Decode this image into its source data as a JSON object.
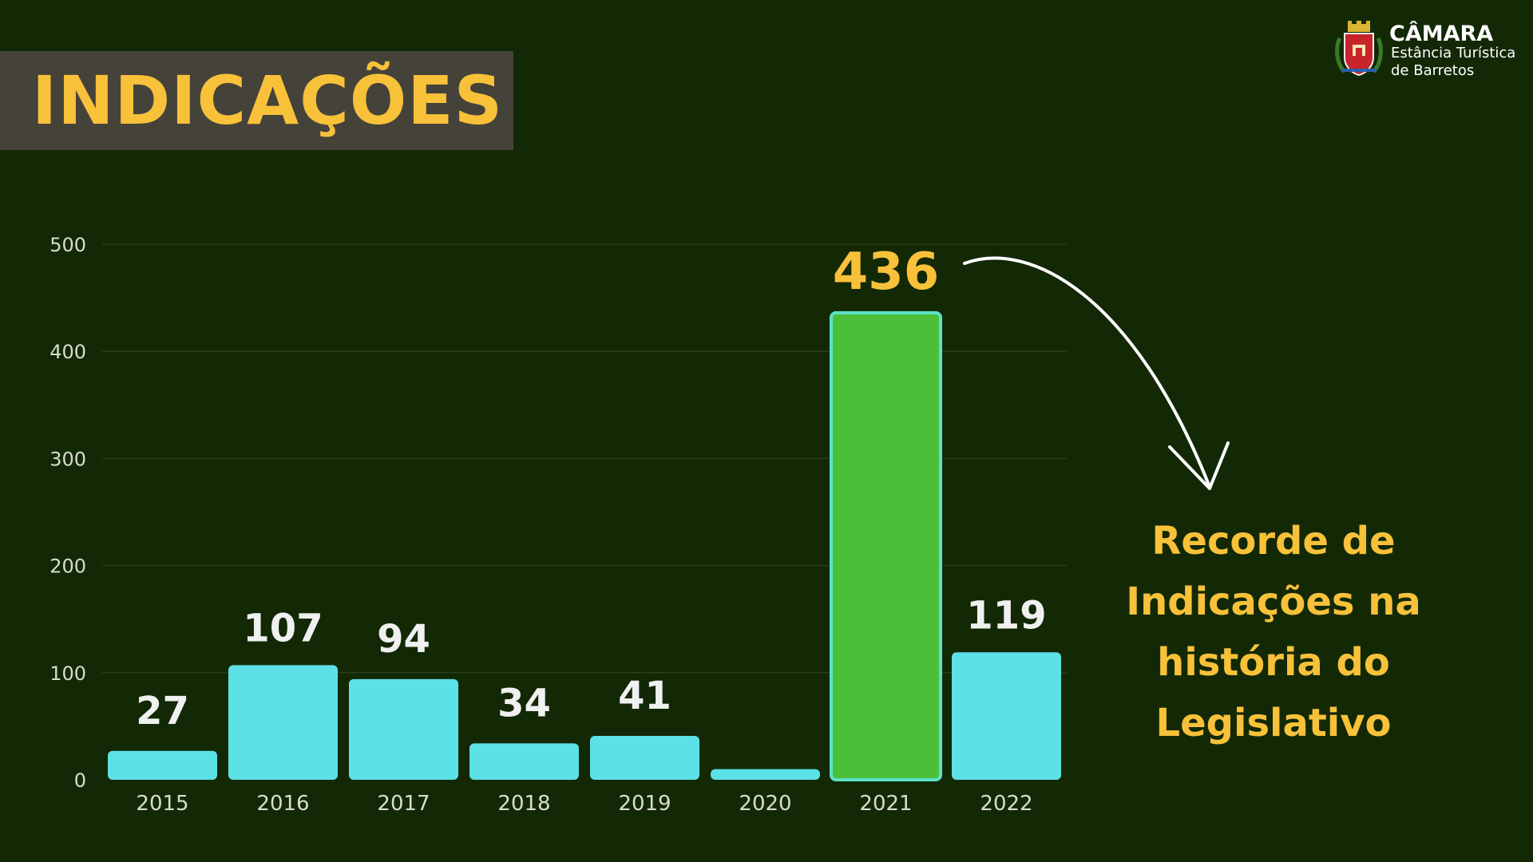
{
  "header": {
    "title": "INDICAÇÕES"
  },
  "logo": {
    "title": "CÂMARA",
    "subtitle_line1": "Estância Turística",
    "subtitle_line2": "de Barretos",
    "icon": "municipal-crest-icon"
  },
  "callout": {
    "lines": [
      "Recorde de",
      "Indicações na",
      "história do",
      "Legislativo"
    ],
    "arrow_icon": "curved-arrow-icon"
  },
  "colors": {
    "background": "#132906",
    "title_box": "#45423a",
    "accent_yellow": "#f8c13a",
    "bar_default": "#5ce1e6",
    "bar_highlight": "#4cbf3a",
    "bar_highlight_border": "#5ce1c8",
    "label_default": "#f0f0f0",
    "label_highlight": "#f8c13a"
  },
  "chart_data": {
    "type": "bar",
    "categories": [
      "2015",
      "2016",
      "2017",
      "2018",
      "2019",
      "2020",
      "2021",
      "2022"
    ],
    "values": [
      27,
      107,
      94,
      34,
      41,
      10,
      436,
      119
    ],
    "data_labels": [
      "27",
      "107",
      "94",
      "34",
      "41",
      "",
      "436",
      "119"
    ],
    "highlight_index": 6,
    "title": "",
    "xlabel": "",
    "ylabel": "",
    "ylim": [
      0,
      500
    ],
    "yticks": [
      "0",
      "100",
      "200",
      "300",
      "400",
      "500"
    ],
    "grid": true,
    "legend": "none"
  }
}
